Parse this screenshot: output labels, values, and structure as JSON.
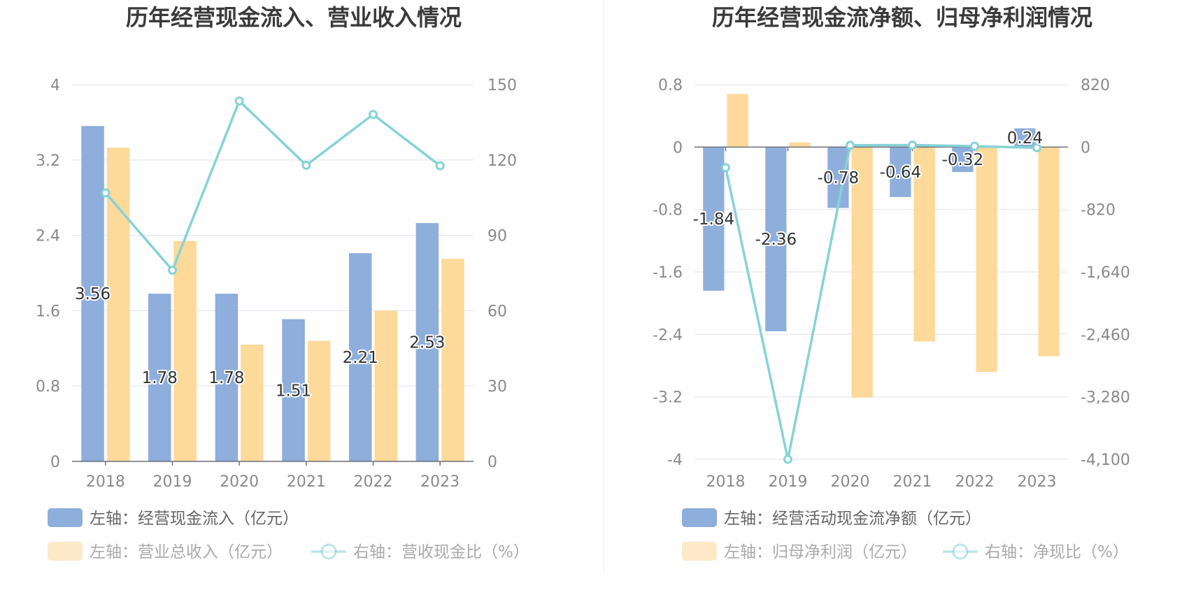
{
  "chart_data": [
    {
      "type": "bar",
      "title": "历年经营现金流入、营业收入情况",
      "categories": [
        "2018",
        "2019",
        "2020",
        "2021",
        "2022",
        "2023"
      ],
      "y_left": {
        "ticks": [
          "0",
          "0.8",
          "1.6",
          "2.4",
          "3.2",
          "4"
        ],
        "range": [
          0,
          4
        ]
      },
      "y_right": {
        "ticks": [
          "0",
          "30",
          "60",
          "90",
          "120",
          "150"
        ],
        "range": [
          0,
          150
        ]
      },
      "series": [
        {
          "name": "左轴：经营现金流入（亿元）",
          "type": "bar",
          "axis": "left",
          "color": "#8eaedc",
          "values": [
            3.56,
            1.78,
            1.78,
            1.51,
            2.21,
            2.53
          ],
          "labels": [
            "3.56",
            "1.78",
            "1.78",
            "1.51",
            "2.21",
            "2.53"
          ]
        },
        {
          "name": "左轴：营业总收入（亿元）",
          "type": "bar",
          "axis": "left",
          "color": "#fdd99a",
          "values": [
            3.33,
            2.34,
            1.24,
            1.28,
            1.6,
            2.15
          ]
        },
        {
          "name": "右轴：营收现金比（%）",
          "type": "line",
          "axis": "right",
          "color": "#86d3d6",
          "values": [
            106.9,
            76.1,
            143.5,
            117.9,
            138.1,
            117.7
          ]
        }
      ],
      "legend_placement": "bottom"
    },
    {
      "type": "bar",
      "title": "历年经营现金流净额、归母净利润情况",
      "categories": [
        "2018",
        "2019",
        "2020",
        "2021",
        "2022",
        "2023"
      ],
      "y_left": {
        "ticks": [
          "-4",
          "-3.2",
          "-2.4",
          "-1.6",
          "-0.8",
          "0",
          "0.8"
        ],
        "range": [
          -4,
          0.8
        ]
      },
      "y_right": {
        "ticks": [
          "-4,100",
          "-3,280",
          "-2,460",
          "-1,640",
          "-820",
          "0",
          "820"
        ],
        "range": [
          -4100,
          820
        ]
      },
      "series": [
        {
          "name": "左轴：经营活动现金流净额（亿元）",
          "type": "bar",
          "axis": "left",
          "color": "#8eaedc",
          "values": [
            -1.84,
            -2.36,
            -0.78,
            -0.64,
            -0.32,
            0.24
          ],
          "labels": [
            "-1.84",
            "-2.36",
            "-0.78",
            "-0.64",
            "-0.32",
            "0.24"
          ]
        },
        {
          "name": "左轴：归母净利润（亿元）",
          "type": "bar",
          "axis": "left",
          "color": "#fdd99a",
          "values": [
            0.68,
            0.06,
            -3.21,
            -2.49,
            -2.88,
            -2.68
          ]
        },
        {
          "name": "右轴：净现比（%）",
          "type": "line",
          "axis": "right",
          "color": "#86d3d6",
          "values": [
            -270,
            -4100,
            24,
            26,
            11,
            -9
          ]
        }
      ],
      "legend_placement": "bottom"
    }
  ]
}
